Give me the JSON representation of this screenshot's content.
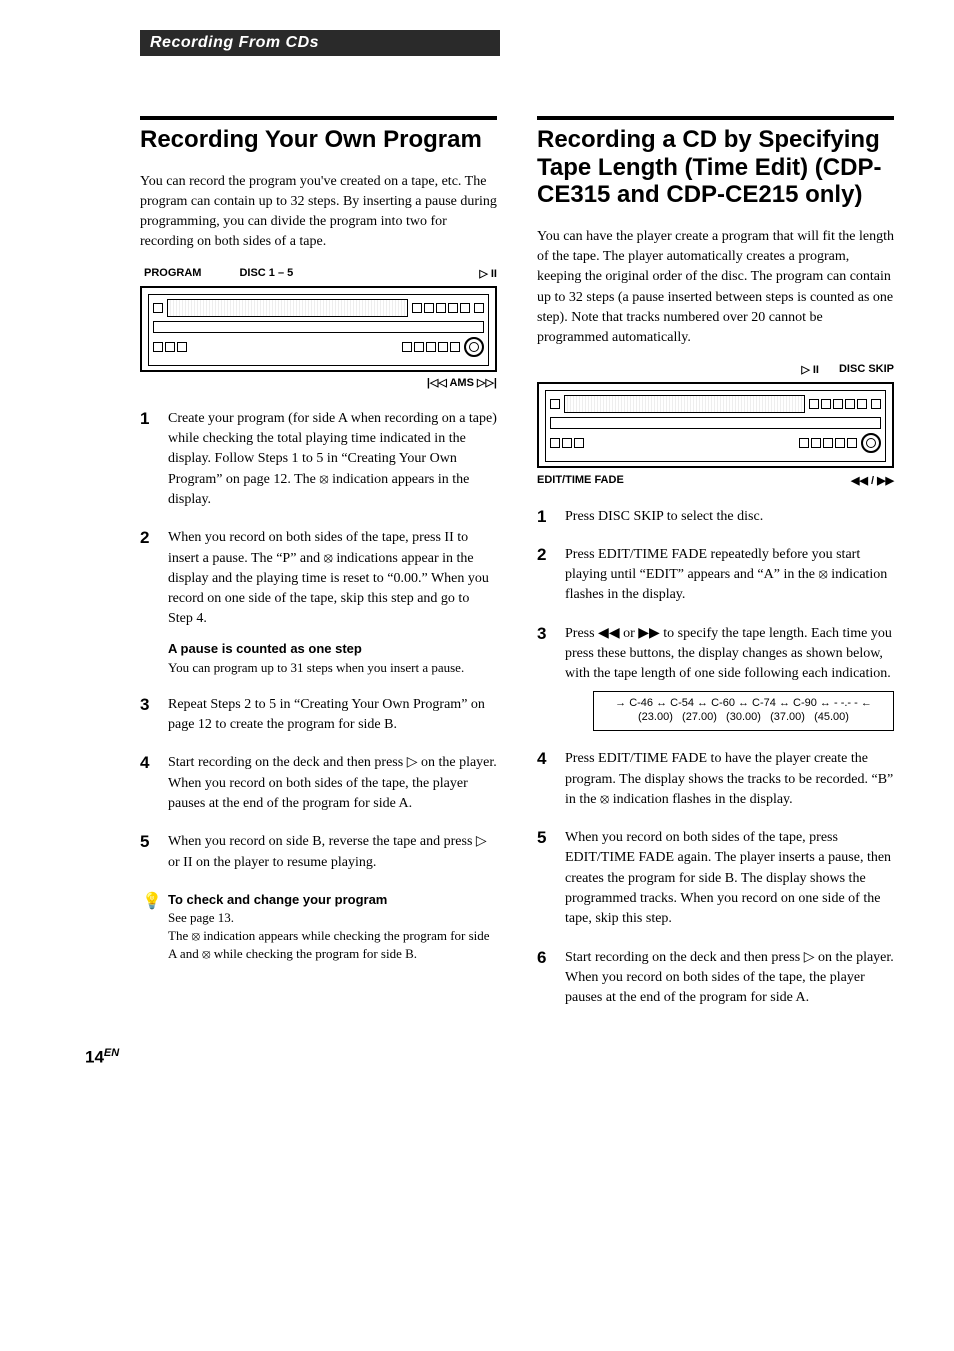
{
  "header_band": "Recording From CDs",
  "left": {
    "title": "Recording Your Own Program",
    "intro": "You can record the program you've created on a tape, etc. The program can contain up to 32 steps. By inserting a pause during programming, you can divide the program into two for recording on both sides of a tape.",
    "device_labels_top": {
      "a": "PROGRAM",
      "b": "DISC 1 – 5",
      "c": "▷ II"
    },
    "device_label_under": "|◁◁ AMS ▷▷|",
    "steps": {
      "s1": "Create your program (for side A when recording on a tape) while checking the total playing time indicated in the display. Follow Steps 1 to 5 in “Creating Your Own Program” on page 12. The ⦻ indication appears in the display.",
      "s2": "When you record on both sides of the tape, press II to insert a pause. The “P” and ⦻ indications appear in the display and the playing time is reset to “0.00.” When you record on one side of the tape, skip this step and go to Step 4.",
      "s2_sub_bold": "A pause is counted as one step",
      "s2_sub": "You can program up to 31 steps when you insert a pause.",
      "s3": "Repeat Steps 2 to 5 in “Creating Your Own Program” on page 12 to create the program for side B.",
      "s4": "Start recording on the deck and then press ▷ on the player. When you record on both sides of the tape, the player pauses at the end of the program for side A.",
      "s5": "When you record on side B, reverse the tape and press ▷ or II on the player to resume playing."
    },
    "tip": {
      "title": "To check and change your program",
      "line1": "See page 13.",
      "line2": "The ⦻ indication appears while checking the program for side A and ⦻ while checking the program for side B."
    }
  },
  "right": {
    "title": "Recording a CD by Specifying Tape Length (Time Edit) (CDP-CE315 and CDP-CE215 only)",
    "intro": "You can have the player create a program that will fit the length of the tape. The player automatically creates a program, keeping the original order of the disc. The program can contain up to 32 steps (a pause inserted between steps is counted as one step). Note that tracks numbered over 20 cannot be programmed automatically.",
    "device_labels_top": {
      "a": "▷ II",
      "b": "DISC SKIP"
    },
    "device_label_under_left": "EDIT/TIME FADE",
    "device_label_under_right": "◀◀ / ▶▶",
    "steps": {
      "s1": "Press DISC SKIP to select the disc.",
      "s2": "Press EDIT/TIME FADE repeatedly before you start playing until “EDIT” appears and “A” in the ⦻ indication flashes in the display.",
      "s3": "Press ◀◀ or ▶▶ to specify the tape length. Each time you press these buttons, the display changes as shown below, with the tape length of one side following each indication.",
      "tape_row": "→ C-46 ↔ C-54 ↔ C-60 ↔ C-74 ↔ C-90 ↔ - -.- - ←",
      "tape_times": "(23.00)   (27.00)   (30.00)   (37.00)   (45.00)",
      "s4": "Press EDIT/TIME FADE to have the player create the program. The display shows the tracks to be recorded. “B” in the ⦻ indication flashes in the display.",
      "s5": "When you record on both sides of the tape, press EDIT/TIME FADE again. The player inserts a pause, then creates the program for side B. The display shows the programmed tracks. When you record on one side of the tape, skip this step.",
      "s6": "Start recording on the deck and then press ▷ on the player. When you record on both sides of the tape, the player pauses at the end of the program for side A."
    }
  },
  "page_number": "14",
  "page_number_lang": "EN"
}
